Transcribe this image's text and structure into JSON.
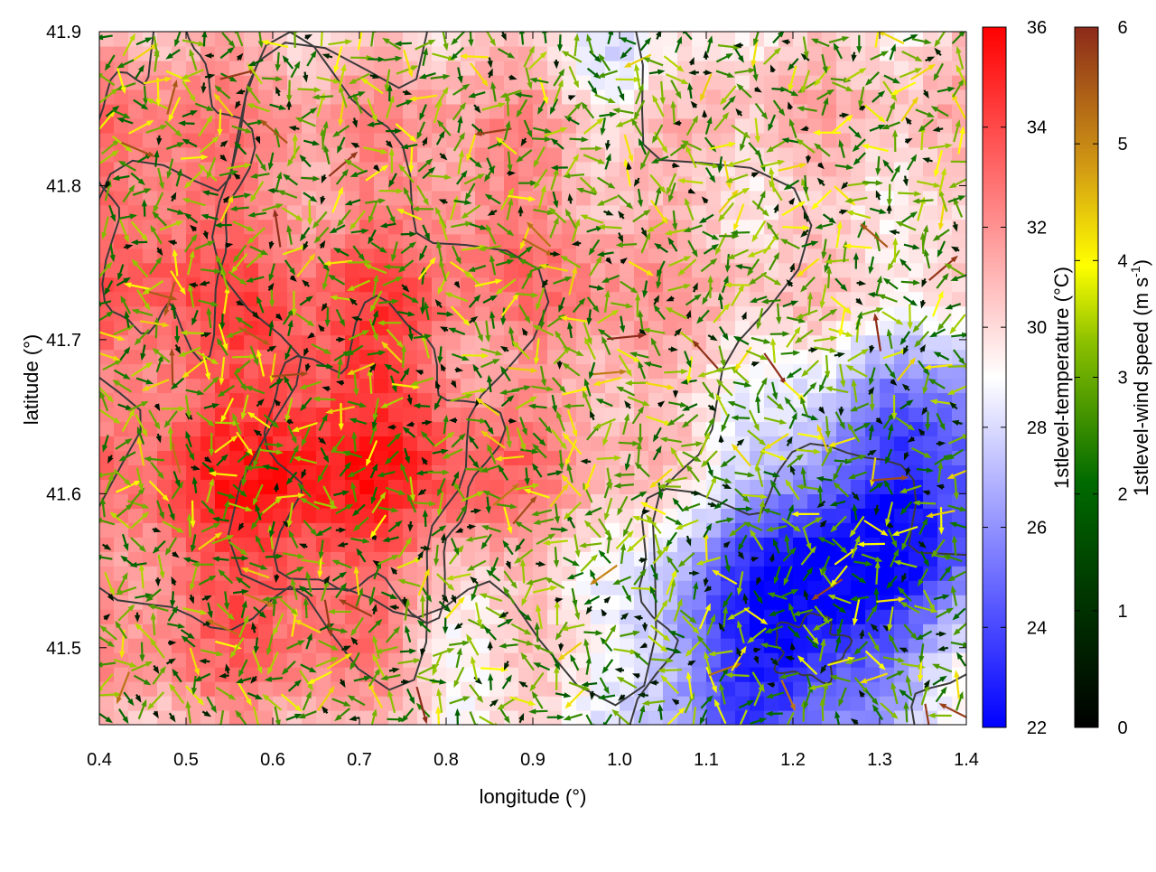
{
  "chart_data": {
    "type": "heatmap",
    "title": "",
    "xlabel": "longitude (°)",
    "ylabel": "latitude (°)",
    "xlim": [
      0.4,
      1.4
    ],
    "ylim": [
      41.45,
      41.9
    ],
    "xticks": [
      "0.4",
      "0.5",
      "0.6",
      "0.7",
      "0.8",
      "0.9",
      "1.0",
      "1.1",
      "1.2",
      "1.3",
      "1.4"
    ],
    "yticks": [
      "41.5",
      "41.6",
      "41.7",
      "41.8",
      "41.9"
    ],
    "grid": false,
    "layers": [
      {
        "kind": "heatmap",
        "variable": "1stlevel-temperature",
        "unit": "°C"
      },
      {
        "kind": "vector-field",
        "variable": "1stlevel-wind speed"
      },
      {
        "kind": "contour-lines",
        "color": "#3a3a3a"
      }
    ],
    "colorbars": [
      {
        "label_main": "1stlevel-temperature (°C)",
        "range": [
          22,
          36
        ],
        "ticks": [
          "22",
          "24",
          "26",
          "28",
          "30",
          "32",
          "34",
          "36"
        ],
        "colors": [
          "#0000ff",
          "#ffffff",
          "#ff0000"
        ]
      },
      {
        "label_main": "1stlevel-wind speed (m s",
        "label_sup": "-1",
        "label_end": ")",
        "range": [
          0,
          6
        ],
        "ticks": [
          "0",
          "1",
          "2",
          "3",
          "4",
          "5",
          "6"
        ],
        "colors": [
          "#000000",
          "#005a00",
          "#6fae00",
          "#ffff00",
          "#c8961e",
          "#8b2a1a"
        ]
      }
    ],
    "temperature_pattern": {
      "description_of_field": "warm (31–34 °C) over west and centre, cool (23–26 °C) pocket in south-east",
      "warm_centers_lonlat": [
        [
          0.55,
          41.58
        ],
        [
          0.7,
          41.62
        ],
        [
          0.85,
          41.73
        ],
        [
          0.45,
          41.78
        ]
      ],
      "cool_centers_lonlat": [
        [
          1.15,
          41.48
        ],
        [
          1.25,
          41.55
        ],
        [
          1.38,
          41.62
        ]
      ],
      "neutral_centers_lonlat": [
        [
          0.85,
          41.7
        ],
        [
          1.0,
          41.88
        ],
        [
          0.82,
          41.5
        ]
      ]
    }
  }
}
